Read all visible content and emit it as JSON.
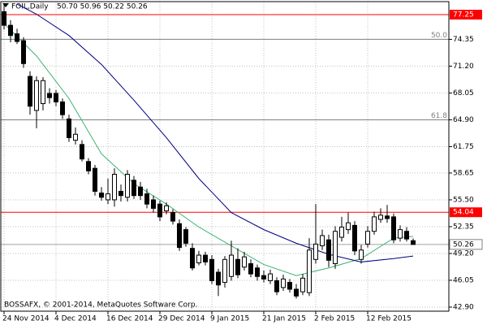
{
  "chart_data": {
    "type": "candlestick",
    "symbol": "FOIL,Daily",
    "ohlc_text": "50.70 50.96 50.22 50.26",
    "footer": "BOSSAFX, © 2001-2014, MetaQuotes Software Corp.",
    "categories": [
      "24 Nov 2014",
      null,
      null,
      null,
      null,
      null,
      null,
      null,
      "4 Dec 2014",
      null,
      null,
      null,
      null,
      null,
      null,
      null,
      "16 Dec 2014",
      null,
      null,
      null,
      null,
      null,
      null,
      null,
      "29 Dec 2014",
      null,
      null,
      null,
      null,
      null,
      null,
      null,
      "9 Jan 2015",
      null,
      null,
      null,
      null,
      null,
      null,
      null,
      "21 Jan 2015",
      null,
      null,
      null,
      null,
      null,
      null,
      null,
      "2 Feb 2015",
      null,
      null,
      null,
      null,
      null,
      null,
      null,
      "12 Feb 2015",
      null,
      null,
      null,
      null,
      null,
      null,
      null
    ],
    "open": [
      77.6,
      76.0,
      75.0,
      74.2,
      70.0,
      66.0,
      66.8,
      68.0,
      68.0,
      67.0,
      65.0,
      62.5,
      62.0,
      60.0,
      59.2,
      56.3,
      55.5,
      55.5,
      56.5,
      55.8,
      57.8,
      57.0,
      56.2,
      55.5,
      55.0,
      54.2,
      54.0,
      52.7,
      52.0,
      49.8,
      48.1,
      49.0,
      48.5,
      47.0,
      45.8,
      46.5,
      48.5,
      47.6,
      48.0,
      47.5,
      46.6,
      46.0,
      46.0,
      45.2,
      45.8,
      45.0,
      44.7,
      44.6,
      48.5,
      50.1,
      50.8,
      48.0,
      51.1,
      52.0,
      52.5,
      48.5,
      50.3,
      51.8,
      53.2,
      53.6,
      53.5,
      51.0,
      51.8,
      50.7
    ],
    "high": [
      78.5,
      76.6,
      75.6,
      74.6,
      70.6,
      70.0,
      69.9,
      68.6,
      68.4,
      67.4,
      65.5,
      64.0,
      62.5,
      60.4,
      59.6,
      57.0,
      58.0,
      59.2,
      57.3,
      59.0,
      58.3,
      57.6,
      56.8,
      56.0,
      55.4,
      55.2,
      54.4,
      53.2,
      52.3,
      50.4,
      49.5,
      49.4,
      49.0,
      47.4,
      48.9,
      50.7,
      49.8,
      49.4,
      48.5,
      47.9,
      47.2,
      47.3,
      46.4,
      46.7,
      46.2,
      45.6,
      46.8,
      51.0,
      55.0,
      52.0,
      51.4,
      52.4,
      53.5,
      54.0,
      53.0,
      50.2,
      52.4,
      54.1,
      54.5,
      54.9,
      53.9,
      52.5,
      52.3,
      50.96
    ],
    "low": [
      75.5,
      74.0,
      73.8,
      71.0,
      65.5,
      63.9,
      66.0,
      66.8,
      66.5,
      65.0,
      62.3,
      62.0,
      60.0,
      58.5,
      56.0,
      55.4,
      55.0,
      54.7,
      55.3,
      55.3,
      55.6,
      55.5,
      54.5,
      54.0,
      53.0,
      53.8,
      52.6,
      49.5,
      50.0,
      47.2,
      47.8,
      47.8,
      45.6,
      44.2,
      45.2,
      46.0,
      46.3,
      47.2,
      46.4,
      46.0,
      45.8,
      45.6,
      44.3,
      44.8,
      44.6,
      43.9,
      44.3,
      44.2,
      48.0,
      49.6,
      47.6,
      47.4,
      50.6,
      51.5,
      49.0,
      48.0,
      49.9,
      51.4,
      52.8,
      52.8,
      50.4,
      50.6,
      50.6,
      50.22
    ],
    "close": [
      76.0,
      74.8,
      74.1,
      71.5,
      66.5,
      69.5,
      69.5,
      67.5,
      67.0,
      65.5,
      62.8,
      63.2,
      60.3,
      58.9,
      56.5,
      55.8,
      56.2,
      58.5,
      56.0,
      58.5,
      56.0,
      56.0,
      55.0,
      54.5,
      53.5,
      54.8,
      53.0,
      49.9,
      50.4,
      47.5,
      49.0,
      48.2,
      46.0,
      45.5,
      48.5,
      49.0,
      46.7,
      48.8,
      46.8,
      46.5,
      46.2,
      46.8,
      44.7,
      46.2,
      45.0,
      44.2,
      46.3,
      49.6,
      50.3,
      51.3,
      48.4,
      51.8,
      52.3,
      52.8,
      49.5,
      49.6,
      51.8,
      53.5,
      53.7,
      53.3,
      50.8,
      52.0,
      50.9,
      50.26
    ],
    "up_color": "#ffffff",
    "down_color": "#000000",
    "moving_averages": [
      {
        "color": "#3cb371",
        "x": [
          0,
          5,
          10,
          15,
          20,
          25,
          30,
          35,
          40,
          45,
          50,
          55,
          60,
          63
        ],
        "values": [
          76.2,
          72.4,
          67.4,
          60.9,
          57.4,
          55.0,
          52.3,
          50.1,
          47.9,
          46.6,
          47.5,
          48.6,
          51.0,
          51.2
        ]
      },
      {
        "color": "#000080",
        "x": [
          2,
          5,
          10,
          15,
          20,
          25,
          30,
          35,
          40,
          45,
          50,
          55,
          60,
          63
        ],
        "values": [
          78.5,
          77.3,
          74.8,
          71.4,
          67.2,
          62.8,
          58.0,
          54.0,
          52.0,
          50.4,
          49.1,
          48.2,
          48.6,
          48.9
        ]
      }
    ],
    "hlines": [
      {
        "value": 77.25,
        "color": "#ff0000"
      },
      {
        "value": 54.04,
        "color": "#ff0000"
      }
    ],
    "fib_levels": [
      {
        "value": 74.35,
        "label": "50.0"
      },
      {
        "value": 64.9,
        "label": "61.8"
      }
    ],
    "last_price": 50.26,
    "ylim": [
      42.42,
      78.78
    ],
    "yticks": [
      74.35,
      {
        "value": 71.2,
        "label": "71.20"
      },
      68.05,
      {
        "value": 64.9,
        "label": "64.90"
      },
      61.75,
      58.65,
      {
        "value": 55.5,
        "label": "55.50"
      },
      52.35,
      {
        "value": 49.2,
        "label": "49.20"
      },
      46.05,
      {
        "value": 42.9,
        "label": "42.90"
      }
    ],
    "grid": true
  }
}
